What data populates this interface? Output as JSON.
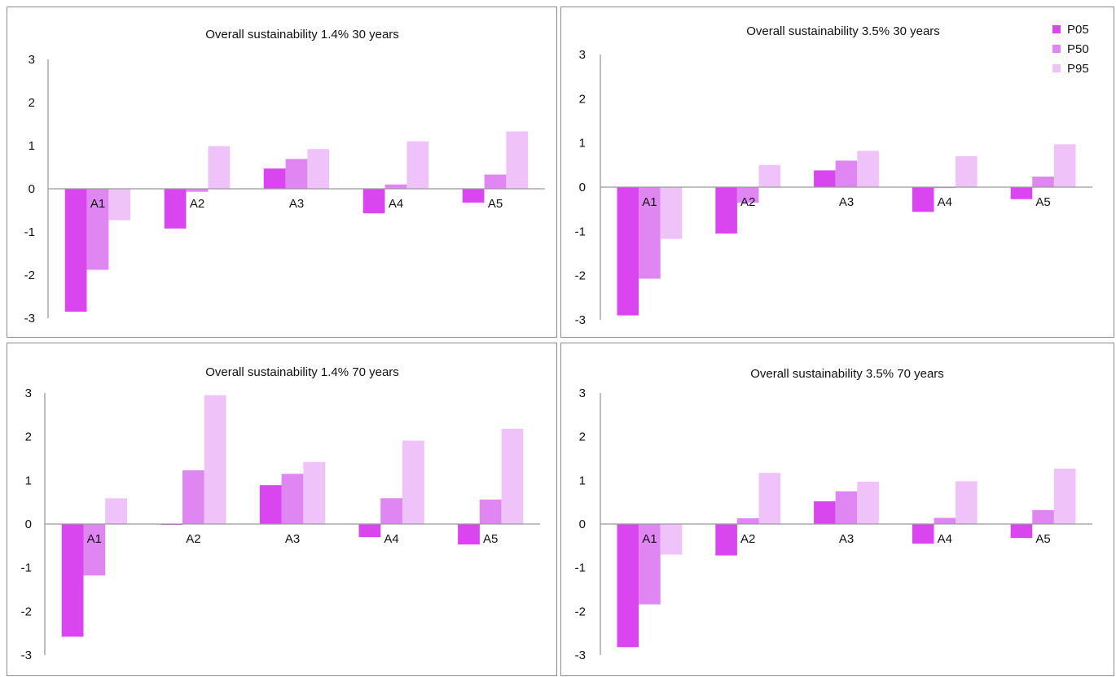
{
  "chart_data": [
    {
      "type": "bar",
      "title": "Overall sustainability 1.4% 30 years",
      "categories": [
        "A1",
        "A2",
        "A3",
        "A4",
        "A5"
      ],
      "ylim": [
        -3,
        3
      ],
      "yticks": [
        "3",
        "2",
        "1",
        "0",
        "-1",
        "-2",
        "-3"
      ],
      "series": [
        {
          "name": "P05",
          "values": [
            -2.85,
            -0.92,
            0.47,
            -0.57,
            -0.32
          ]
        },
        {
          "name": "P50",
          "values": [
            -1.88,
            -0.07,
            0.69,
            0.1,
            0.33
          ]
        },
        {
          "name": "P95",
          "values": [
            -0.73,
            0.99,
            0.92,
            1.1,
            1.33
          ]
        }
      ]
    },
    {
      "type": "bar",
      "title": "Overall sustainability 3.5% 30 years",
      "categories": [
        "A1",
        "A2",
        "A3",
        "A4",
        "A5"
      ],
      "ylim": [
        -3,
        3
      ],
      "yticks": [
        "3",
        "2",
        "1",
        "0",
        "-1",
        "-2",
        "-3"
      ],
      "series": [
        {
          "name": "P05",
          "values": [
            -2.9,
            -1.05,
            0.38,
            -0.56,
            -0.27
          ]
        },
        {
          "name": "P50",
          "values": [
            -2.07,
            -0.35,
            0.6,
            -0.02,
            0.24
          ]
        },
        {
          "name": "P95",
          "values": [
            -1.17,
            0.5,
            0.82,
            0.7,
            0.97
          ]
        }
      ]
    },
    {
      "type": "bar",
      "title": "Overall sustainability 1.4% 70 years",
      "categories": [
        "A1",
        "A2",
        "A3",
        "A4",
        "A5"
      ],
      "ylim": [
        -3,
        3
      ],
      "yticks": [
        "3",
        "2",
        "1",
        "0",
        "-1",
        "-2",
        "-3"
      ],
      "series": [
        {
          "name": "P05",
          "values": [
            -2.58,
            -0.02,
            0.89,
            -0.3,
            -0.47
          ]
        },
        {
          "name": "P50",
          "values": [
            -1.18,
            1.23,
            1.15,
            0.59,
            0.56
          ]
        },
        {
          "name": "P95",
          "values": [
            0.59,
            2.95,
            1.42,
            1.91,
            2.18
          ]
        }
      ]
    },
    {
      "type": "bar",
      "title": "Overall sustainability 3.5% 70 years",
      "categories": [
        "A1",
        "A2",
        "A3",
        "A4",
        "A5"
      ],
      "ylim": [
        -3,
        3
      ],
      "yticks": [
        "3",
        "2",
        "1",
        "0",
        "-1",
        "-2",
        "-3"
      ],
      "series": [
        {
          "name": "P05",
          "values": [
            -2.82,
            -0.72,
            0.52,
            -0.45,
            -0.32
          ]
        },
        {
          "name": "P50",
          "values": [
            -1.84,
            0.13,
            0.75,
            0.14,
            0.32
          ]
        },
        {
          "name": "P95",
          "values": [
            -0.7,
            1.17,
            0.97,
            0.98,
            1.27
          ]
        }
      ]
    }
  ],
  "legend": {
    "placement": "top-right",
    "items": [
      {
        "label": "P05",
        "color": "#d946ef"
      },
      {
        "label": "P50",
        "color": "#df86f3"
      },
      {
        "label": "P95",
        "color": "#efc3fa"
      }
    ]
  },
  "colors": {
    "p05": "#d946ef",
    "p50": "#df86f3",
    "p95": "#efc3fa",
    "axis": "#9a9a9a"
  }
}
